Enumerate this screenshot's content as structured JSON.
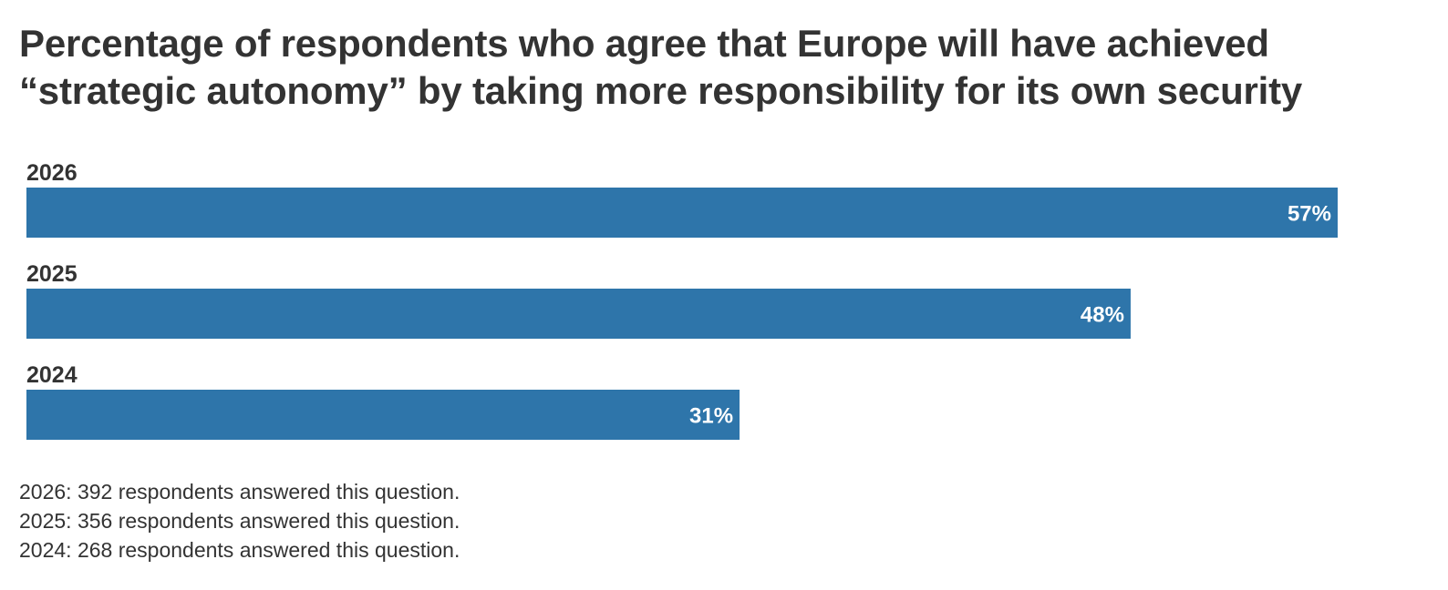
{
  "chart_data": {
    "type": "bar",
    "orientation": "horizontal",
    "title": "Percentage of respondents who agree that Europe will have achieved “strategic autonomy” by taking more responsibility for its own security",
    "categories": [
      "2026",
      "2025",
      "2024"
    ],
    "values": [
      57,
      48,
      31
    ],
    "value_labels": [
      "57%",
      "48%",
      "31%"
    ],
    "unit": "%",
    "grid": false,
    "bar_color": "#2E75AA",
    "value_label_color": "#ffffff"
  },
  "notes": [
    "2026: 392 respondents answered this question.",
    "2025: 356 respondents answered this question.",
    "2024: 268 respondents answered this question."
  ]
}
